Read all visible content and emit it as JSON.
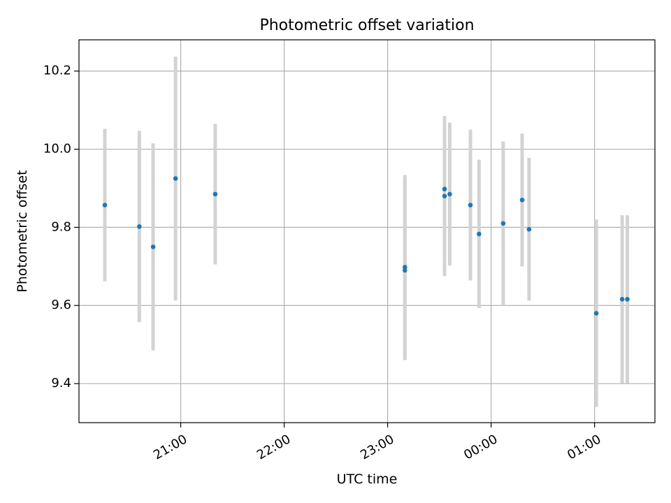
{
  "chart_data": {
    "type": "scatter",
    "title": "Photometric offset variation",
    "xlabel": "UTC time",
    "ylabel": "Photometric offset",
    "x_is_time": true,
    "x_ticks": [
      "21:00",
      "22:00",
      "23:00",
      "00:00",
      "01:00"
    ],
    "y_ticks": [
      "9.4",
      "9.6",
      "9.8",
      "10.0",
      "10.2"
    ],
    "xlim": [
      "20:01",
      "01:35"
    ],
    "ylim": [
      9.3,
      10.28
    ],
    "grid": true,
    "colors": {
      "point": "#1f77b4",
      "errorbar": "#d3d3d3",
      "grid": "#b0b0b0"
    },
    "points": [
      {
        "x": "20:16",
        "y": 9.857,
        "err": 0.195
      },
      {
        "x": "20:36",
        "y": 9.802,
        "err": 0.245
      },
      {
        "x": "20:44",
        "y": 9.75,
        "err": 0.265
      },
      {
        "x": "20:57",
        "y": 9.925,
        "err": 0.312
      },
      {
        "x": "21:20",
        "y": 9.885,
        "err": 0.18
      },
      {
        "x": "23:10",
        "y": 9.698,
        "err": 0.236
      },
      {
        "x": "23:10",
        "y": 9.69,
        "err": 0.23
      },
      {
        "x": "23:33",
        "y": 9.88,
        "err": 0.205
      },
      {
        "x": "23:33",
        "y": 9.898,
        "err": 0.168
      },
      {
        "x": "23:36",
        "y": 9.885,
        "err": 0.183
      },
      {
        "x": "23:48",
        "y": 9.857,
        "err": 0.193
      },
      {
        "x": "23:53",
        "y": 9.783,
        "err": 0.19
      },
      {
        "x": "00:07",
        "y": 9.81,
        "err": 0.21
      },
      {
        "x": "00:18",
        "y": 9.87,
        "err": 0.17
      },
      {
        "x": "00:22",
        "y": 9.795,
        "err": 0.183
      },
      {
        "x": "01:01",
        "y": 9.58,
        "err": 0.24
      },
      {
        "x": "01:16",
        "y": 9.616,
        "err": 0.215
      },
      {
        "x": "01:19",
        "y": 9.616,
        "err": 0.215
      }
    ]
  }
}
